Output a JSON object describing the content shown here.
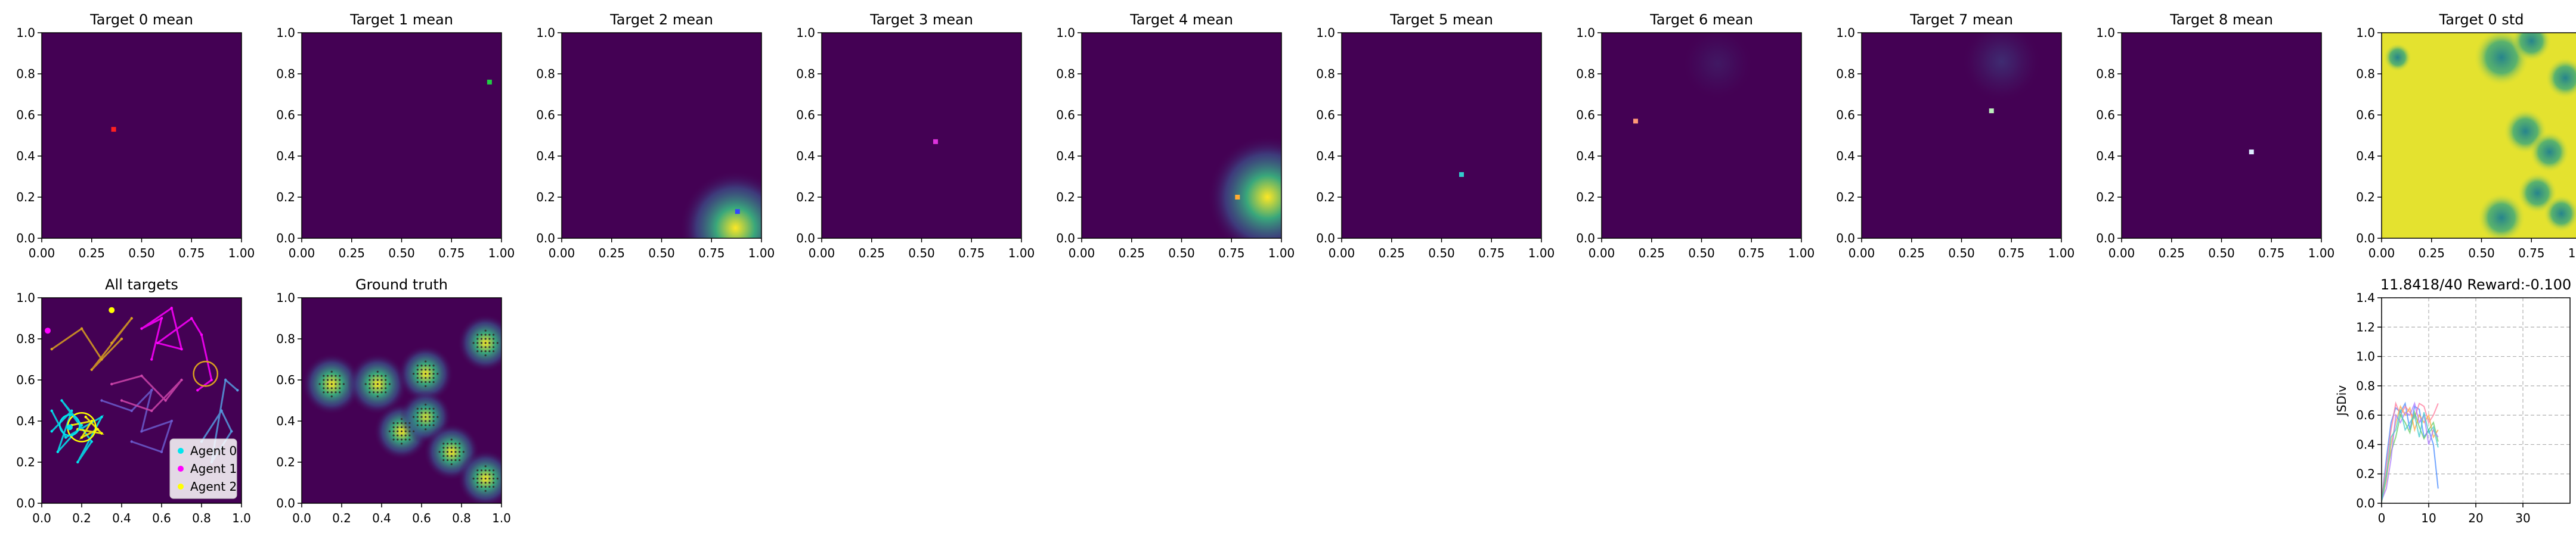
{
  "figure": {
    "colors": {
      "background": "#ffffff",
      "heat_low": "#440154",
      "heat_mid": "#21918c",
      "heat_high": "#fde725",
      "agent_0": "#00e5ee",
      "agent_1": "#ff00ff",
      "agent_2": "#ffff00"
    }
  },
  "chart_data": [
    {
      "type": "heatmap",
      "title": "Target 0 mean",
      "xlim": [
        0,
        1
      ],
      "ylim": [
        0,
        1
      ],
      "xticks": [
        "0.00",
        "0.25",
        "0.50",
        "0.75",
        "1.00"
      ],
      "yticks": [
        "0.0",
        "0.2",
        "0.4",
        "0.6",
        "0.8",
        "1.0"
      ],
      "agent_marker": {
        "x": 0.36,
        "y": 0.53,
        "color": "#ff2020"
      },
      "blobs": []
    },
    {
      "type": "heatmap",
      "title": "Target 1 mean",
      "xlim": [
        0,
        1
      ],
      "ylim": [
        0,
        1
      ],
      "xticks": [
        "0.00",
        "0.25",
        "0.50",
        "0.75",
        "1.00"
      ],
      "yticks": [
        "0.0",
        "0.2",
        "0.4",
        "0.6",
        "0.8",
        "1.0"
      ],
      "agent_marker": {
        "x": 0.94,
        "y": 0.76,
        "color": "#22cc44"
      },
      "blobs": []
    },
    {
      "type": "heatmap",
      "title": "Target 2 mean",
      "xlim": [
        0,
        1
      ],
      "ylim": [
        0,
        1
      ],
      "xticks": [
        "0.00",
        "0.25",
        "0.50",
        "0.75",
        "1.00"
      ],
      "yticks": [
        "0.0",
        "0.2",
        "0.4",
        "0.6",
        "0.8",
        "1.0"
      ],
      "agent_marker": {
        "x": 0.88,
        "y": 0.13,
        "color": "#3344ff"
      },
      "blobs": [
        {
          "x": 0.87,
          "y": 0.05,
          "r": 0.28,
          "peak": 1.0
        }
      ]
    },
    {
      "type": "heatmap",
      "title": "Target 3 mean",
      "xlim": [
        0,
        1
      ],
      "ylim": [
        0,
        1
      ],
      "xticks": [
        "0.00",
        "0.25",
        "0.50",
        "0.75",
        "1.00"
      ],
      "yticks": [
        "0.0",
        "0.2",
        "0.4",
        "0.6",
        "0.8",
        "1.0"
      ],
      "agent_marker": {
        "x": 0.57,
        "y": 0.47,
        "color": "#dd33dd"
      },
      "blobs": []
    },
    {
      "type": "heatmap",
      "title": "Target 4 mean",
      "xlim": [
        0,
        1
      ],
      "ylim": [
        0,
        1
      ],
      "xticks": [
        "0.00",
        "0.25",
        "0.50",
        "0.75",
        "1.00"
      ],
      "yticks": [
        "0.0",
        "0.2",
        "0.4",
        "0.6",
        "0.8",
        "1.0"
      ],
      "agent_marker": {
        "x": 0.78,
        "y": 0.2,
        "color": "#ffaa33"
      },
      "blobs": [
        {
          "x": 0.93,
          "y": 0.2,
          "r": 0.3,
          "peak": 1.0
        }
      ]
    },
    {
      "type": "heatmap",
      "title": "Target 5 mean",
      "xlim": [
        0,
        1
      ],
      "ylim": [
        0,
        1
      ],
      "xticks": [
        "0.00",
        "0.25",
        "0.50",
        "0.75",
        "1.00"
      ],
      "yticks": [
        "0.0",
        "0.2",
        "0.4",
        "0.6",
        "0.8",
        "1.0"
      ],
      "agent_marker": {
        "x": 0.6,
        "y": 0.31,
        "color": "#33cccc"
      },
      "blobs": []
    },
    {
      "type": "heatmap",
      "title": "Target 6 mean",
      "xlim": [
        0,
        1
      ],
      "ylim": [
        0,
        1
      ],
      "xticks": [
        "0.00",
        "0.25",
        "0.50",
        "0.75",
        "1.00"
      ],
      "yticks": [
        "0.0",
        "0.2",
        "0.4",
        "0.6",
        "0.8",
        "1.0"
      ],
      "agent_marker": {
        "x": 0.17,
        "y": 0.57,
        "color": "#ff9977"
      },
      "blobs": [
        {
          "x": 0.58,
          "y": 0.85,
          "r": 0.18,
          "peak": 0.07
        }
      ]
    },
    {
      "type": "heatmap",
      "title": "Target 7 mean",
      "xlim": [
        0,
        1
      ],
      "ylim": [
        0,
        1
      ],
      "xticks": [
        "0.00",
        "0.25",
        "0.50",
        "0.75",
        "1.00"
      ],
      "yticks": [
        "0.0",
        "0.2",
        "0.4",
        "0.6",
        "0.8",
        "1.0"
      ],
      "agent_marker": {
        "x": 0.65,
        "y": 0.62,
        "color": "#bbeebb"
      },
      "blobs": [
        {
          "x": 0.7,
          "y": 0.86,
          "r": 0.2,
          "peak": 0.13
        }
      ]
    },
    {
      "type": "heatmap",
      "title": "Target 8 mean",
      "xlim": [
        0,
        1
      ],
      "ylim": [
        0,
        1
      ],
      "xticks": [
        "0.00",
        "0.25",
        "0.50",
        "0.75",
        "1.00"
      ],
      "yticks": [
        "0.0",
        "0.2",
        "0.4",
        "0.6",
        "0.8",
        "1.0"
      ],
      "agent_marker": {
        "x": 0.65,
        "y": 0.42,
        "color": "#ddeeff"
      },
      "blobs": []
    },
    {
      "type": "heatmap",
      "title": "Target 0 std",
      "xlim": [
        0,
        1
      ],
      "ylim": [
        0,
        1
      ],
      "xticks": [
        "0.00",
        "0.25",
        "0.50",
        "0.75",
        "1.00"
      ],
      "yticks": [
        "0.0",
        "0.2",
        "0.4",
        "0.6",
        "0.8",
        "1.0"
      ],
      "base": 0.96,
      "low_spots": [
        {
          "x": 0.6,
          "y": 0.88,
          "r": 0.14
        },
        {
          "x": 0.75,
          "y": 0.96,
          "r": 0.1
        },
        {
          "x": 0.92,
          "y": 0.78,
          "r": 0.1
        },
        {
          "x": 0.72,
          "y": 0.52,
          "r": 0.11
        },
        {
          "x": 0.84,
          "y": 0.42,
          "r": 0.1
        },
        {
          "x": 0.78,
          "y": 0.22,
          "r": 0.1
        },
        {
          "x": 0.6,
          "y": 0.1,
          "r": 0.12
        },
        {
          "x": 0.9,
          "y": 0.12,
          "r": 0.09
        },
        {
          "x": 0.08,
          "y": 0.88,
          "r": 0.07
        }
      ]
    },
    {
      "type": "scatter",
      "title": "All targets",
      "xlim": [
        0,
        1
      ],
      "ylim": [
        0,
        1
      ],
      "xticks": [
        "0.0",
        "0.2",
        "0.4",
        "0.6",
        "0.8",
        "1.0"
      ],
      "yticks": [
        "0.0",
        "0.2",
        "0.4",
        "0.6",
        "0.8",
        "1.0"
      ],
      "legend": [
        {
          "label": "Agent 0",
          "color": "#00e5ee"
        },
        {
          "label": "Agent 1",
          "color": "#ff00ff"
        },
        {
          "label": "Agent 2",
          "color": "#ffff00"
        }
      ],
      "legend_position": "lower right",
      "paths": [
        {
          "color": "#00e5ee",
          "points": [
            [
              0.05,
              0.35
            ],
            [
              0.15,
              0.45
            ],
            [
              0.08,
              0.25
            ],
            [
              0.2,
              0.38
            ],
            [
              0.1,
              0.5
            ],
            [
              0.25,
              0.3
            ],
            [
              0.18,
              0.2
            ],
            [
              0.3,
              0.42
            ],
            [
              0.12,
              0.32
            ],
            [
              0.05,
              0.45
            ]
          ]
        },
        {
          "color": "#ff00ff",
          "points": [
            [
              0.55,
              0.7
            ],
            [
              0.6,
              0.9
            ],
            [
              0.5,
              0.85
            ],
            [
              0.65,
              0.95
            ],
            [
              0.7,
              0.75
            ],
            [
              0.58,
              0.78
            ],
            [
              0.75,
              0.9
            ],
            [
              0.8,
              0.82
            ],
            [
              0.85,
              0.6
            ],
            [
              0.78,
              0.55
            ]
          ]
        },
        {
          "color": "#ffff00",
          "points": [
            [
              0.15,
              0.38
            ],
            [
              0.25,
              0.4
            ],
            [
              0.2,
              0.32
            ],
            [
              0.28,
              0.36
            ],
            [
              0.22,
              0.42
            ],
            [
              0.3,
              0.34
            ],
            [
              0.18,
              0.36
            ]
          ]
        },
        {
          "color": "#d9a020",
          "points": [
            [
              0.05,
              0.75
            ],
            [
              0.2,
              0.85
            ],
            [
              0.3,
              0.7
            ],
            [
              0.4,
              0.8
            ],
            [
              0.25,
              0.65
            ],
            [
              0.45,
              0.9
            ],
            [
              0.35,
              0.78
            ]
          ]
        },
        {
          "color": "#6a5acd",
          "points": [
            [
              0.3,
              0.5
            ],
            [
              0.45,
              0.45
            ],
            [
              0.55,
              0.55
            ],
            [
              0.5,
              0.35
            ],
            [
              0.65,
              0.4
            ],
            [
              0.6,
              0.25
            ],
            [
              0.45,
              0.3
            ]
          ]
        },
        {
          "color": "#cc44aa",
          "points": [
            [
              0.35,
              0.58
            ],
            [
              0.5,
              0.62
            ],
            [
              0.62,
              0.5
            ],
            [
              0.7,
              0.6
            ],
            [
              0.55,
              0.45
            ],
            [
              0.4,
              0.5
            ]
          ]
        },
        {
          "color": "#5599dd",
          "points": [
            [
              0.8,
              0.3
            ],
            [
              0.9,
              0.45
            ],
            [
              0.95,
              0.35
            ],
            [
              0.85,
              0.2
            ],
            [
              0.92,
              0.6
            ],
            [
              0.98,
              0.55
            ]
          ]
        }
      ],
      "circles": [
        {
          "x": 0.82,
          "y": 0.63,
          "r": 0.06,
          "color": "#d9a020"
        },
        {
          "x": 0.2,
          "y": 0.37,
          "r": 0.07,
          "color": "#ffff00"
        },
        {
          "x": 0.14,
          "y": 0.38,
          "r": 0.05,
          "color": "#00e5ee"
        }
      ],
      "markers": [
        {
          "x": 0.35,
          "y": 0.94,
          "color": "#ffff00"
        },
        {
          "x": 0.03,
          "y": 0.84,
          "color": "#ff00ff"
        },
        {
          "x": 0.14,
          "y": 0.37,
          "color": "#00e5ee"
        }
      ]
    },
    {
      "type": "heatmap",
      "title": "Ground truth",
      "xlim": [
        0,
        1
      ],
      "ylim": [
        0,
        1
      ],
      "xticks": [
        "0.0",
        "0.2",
        "0.4",
        "0.6",
        "0.8",
        "1.0"
      ],
      "yticks": [
        "0.0",
        "0.2",
        "0.4",
        "0.6",
        "0.8",
        "1.0"
      ],
      "blobs": [
        {
          "x": 0.15,
          "y": 0.58,
          "r": 0.15,
          "peak": 1.0
        },
        {
          "x": 0.38,
          "y": 0.58,
          "r": 0.15,
          "peak": 1.0
        },
        {
          "x": 0.5,
          "y": 0.35,
          "r": 0.14,
          "peak": 1.0
        },
        {
          "x": 0.62,
          "y": 0.63,
          "r": 0.14,
          "peak": 1.0
        },
        {
          "x": 0.62,
          "y": 0.42,
          "r": 0.13,
          "peak": 0.95
        },
        {
          "x": 0.75,
          "y": 0.25,
          "r": 0.14,
          "peak": 1.0
        },
        {
          "x": 0.92,
          "y": 0.78,
          "r": 0.14,
          "peak": 1.0
        },
        {
          "x": 0.92,
          "y": 0.12,
          "r": 0.14,
          "peak": 1.0
        }
      ],
      "dot_grid": true
    },
    {
      "type": "line",
      "title": "11.8418/40 Reward:-0.100",
      "xlim": [
        0,
        40
      ],
      "ylim": [
        0,
        1.4
      ],
      "xlabel": "",
      "ylabel": "JSDiv",
      "xticks": [
        "0",
        "10",
        "20",
        "30"
      ],
      "yticks": [
        "0.0",
        "0.2",
        "0.4",
        "0.6",
        "0.8",
        "1.0",
        "1.2",
        "1.4"
      ],
      "grid": true,
      "series": [
        {
          "color": "#4488ff",
          "values": [
            [
              0,
              0.02
            ],
            [
              1,
              0.3
            ],
            [
              2,
              0.55
            ],
            [
              3,
              0.65
            ],
            [
              4,
              0.62
            ],
            [
              5,
              0.68
            ],
            [
              6,
              0.5
            ],
            [
              7,
              0.66
            ],
            [
              8,
              0.64
            ],
            [
              9,
              0.45
            ],
            [
              10,
              0.5
            ],
            [
              11,
              0.4
            ],
            [
              12,
              0.1
            ]
          ]
        },
        {
          "color": "#ff7799",
          "values": [
            [
              0,
              0.03
            ],
            [
              1,
              0.25
            ],
            [
              2,
              0.5
            ],
            [
              3,
              0.68
            ],
            [
              4,
              0.6
            ],
            [
              5,
              0.66
            ],
            [
              6,
              0.62
            ],
            [
              7,
              0.58
            ],
            [
              8,
              0.68
            ],
            [
              9,
              0.66
            ],
            [
              10,
              0.55
            ],
            [
              11,
              0.6
            ],
            [
              12,
              0.68
            ]
          ]
        },
        {
          "color": "#66cc66",
          "values": [
            [
              0,
              0.02
            ],
            [
              1,
              0.2
            ],
            [
              2,
              0.35
            ],
            [
              3,
              0.45
            ],
            [
              4,
              0.6
            ],
            [
              5,
              0.55
            ],
            [
              6,
              0.48
            ],
            [
              7,
              0.62
            ],
            [
              8,
              0.52
            ],
            [
              9,
              0.44
            ],
            [
              10,
              0.5
            ],
            [
              11,
              0.55
            ],
            [
              12,
              0.42
            ]
          ]
        },
        {
          "color": "#ffaa44",
          "values": [
            [
              0,
              0.01
            ],
            [
              1,
              0.15
            ],
            [
              2,
              0.4
            ],
            [
              3,
              0.55
            ],
            [
              4,
              0.66
            ],
            [
              5,
              0.6
            ],
            [
              6,
              0.65
            ],
            [
              7,
              0.5
            ],
            [
              8,
              0.6
            ],
            [
              9,
              0.55
            ],
            [
              10,
              0.6
            ],
            [
              11,
              0.45
            ],
            [
              12,
              0.5
            ]
          ]
        },
        {
          "color": "#aa77ff",
          "values": [
            [
              0,
              0.02
            ],
            [
              1,
              0.1
            ],
            [
              2,
              0.3
            ],
            [
              3,
              0.6
            ],
            [
              4,
              0.55
            ],
            [
              5,
              0.62
            ],
            [
              6,
              0.6
            ],
            [
              7,
              0.68
            ],
            [
              8,
              0.55
            ],
            [
              9,
              0.6
            ],
            [
              10,
              0.4
            ],
            [
              11,
              0.5
            ],
            [
              12,
              0.45
            ]
          ]
        },
        {
          "color": "#44cccc",
          "values": [
            [
              0,
              0.01
            ],
            [
              1,
              0.18
            ],
            [
              2,
              0.45
            ],
            [
              3,
              0.5
            ],
            [
              4,
              0.64
            ],
            [
              5,
              0.5
            ],
            [
              6,
              0.55
            ],
            [
              7,
              0.6
            ],
            [
              8,
              0.45
            ],
            [
              9,
              0.62
            ],
            [
              10,
              0.48
            ],
            [
              11,
              0.52
            ],
            [
              12,
              0.38
            ]
          ]
        }
      ]
    }
  ]
}
